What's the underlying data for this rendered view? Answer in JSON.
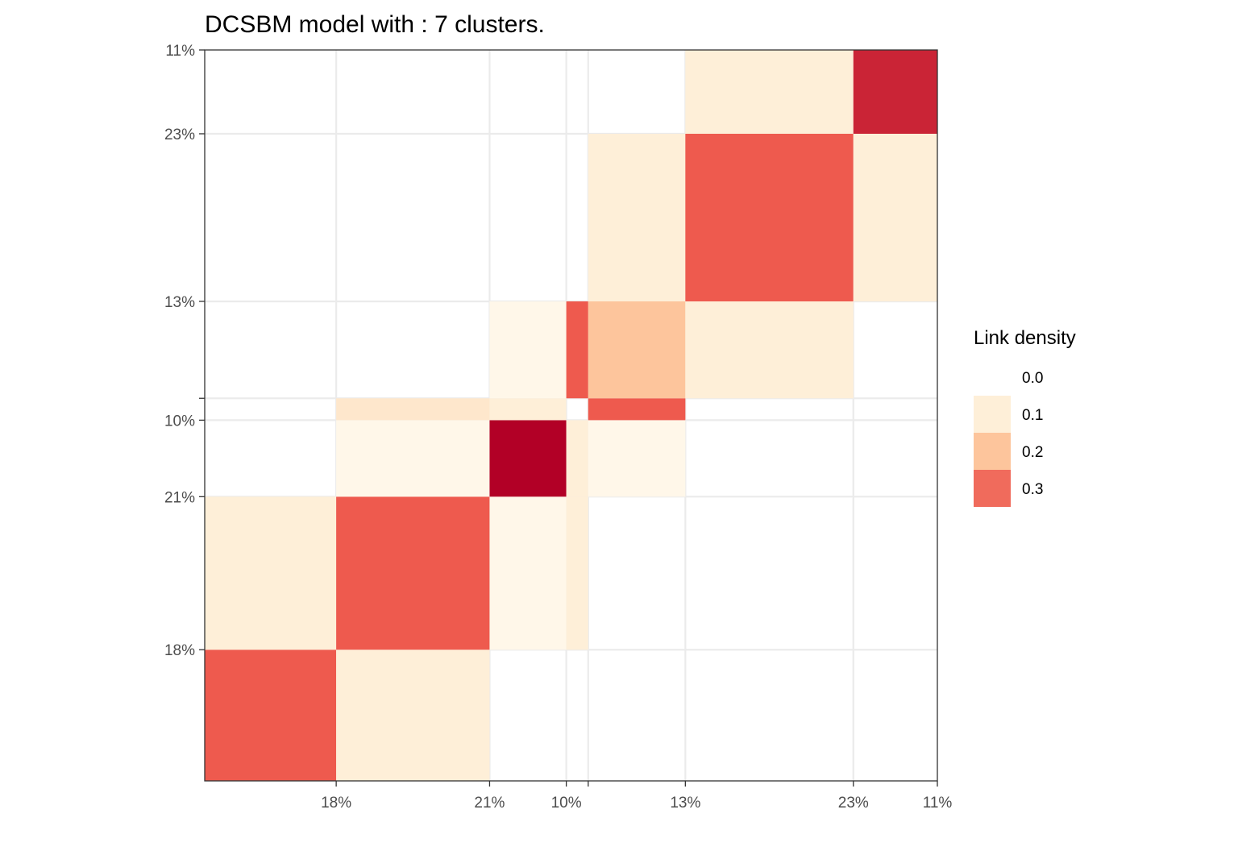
{
  "chart_data": {
    "type": "heatmap",
    "title": "DCSBM model with : 7 clusters.",
    "xlabel": "",
    "ylabel": "",
    "col_clusters": [
      {
        "size_pct": 18,
        "label": "18%"
      },
      {
        "size_pct": 21,
        "label": "21%"
      },
      {
        "size_pct": 10.5,
        "label": "10%"
      },
      {
        "size_pct": 3,
        "label": ""
      },
      {
        "size_pct": 13.3,
        "label": "13%"
      },
      {
        "size_pct": 23,
        "label": "23%"
      },
      {
        "size_pct": 11.5,
        "label": "11%"
      }
    ],
    "row_clusters_bottom_to_top": [
      {
        "size_pct": 18,
        "label": "18%"
      },
      {
        "size_pct": 21,
        "label": "21%"
      },
      {
        "size_pct": 10.5,
        "label": "10%"
      },
      {
        "size_pct": 3,
        "label": ""
      },
      {
        "size_pct": 13.3,
        "label": "13%"
      },
      {
        "size_pct": 23,
        "label": "23%"
      },
      {
        "size_pct": 11.5,
        "label": "11%"
      }
    ],
    "density_rows_bottom_to_top": [
      [
        0.3,
        0.1,
        0.0,
        0.0,
        0.0,
        0.0,
        0.0
      ],
      [
        0.1,
        0.3,
        0.05,
        0.1,
        0.0,
        0.0,
        0.0
      ],
      [
        0.0,
        0.05,
        0.35,
        0.1,
        0.05,
        0.0,
        0.0
      ],
      [
        0.0,
        0.12,
        0.1,
        0.0,
        0.3,
        0.0,
        0.0
      ],
      [
        0.0,
        0.0,
        0.05,
        0.3,
        0.2,
        0.1,
        0.0
      ],
      [
        0.0,
        0.0,
        0.0,
        0.0,
        0.1,
        0.3,
        0.1
      ],
      [
        0.0,
        0.0,
        0.0,
        0.0,
        0.0,
        0.1,
        0.33
      ]
    ],
    "color_scale": {
      "stops": [
        0.0,
        0.1,
        0.2,
        0.3,
        0.35
      ],
      "colors": [
        "#fffefa",
        "#feefd8",
        "#fdc59c",
        "#ee5a4e",
        "#b20026"
      ]
    },
    "legend": {
      "title": "Link density",
      "position": "right",
      "entries": [
        {
          "label": "0.0",
          "color": "#ffffff"
        },
        {
          "label": "0.1",
          "color": "#feefd8"
        },
        {
          "label": "0.2",
          "color": "#fdc59c"
        },
        {
          "label": "0.3",
          "color": "#f06b5c"
        }
      ]
    },
    "grid": true
  }
}
